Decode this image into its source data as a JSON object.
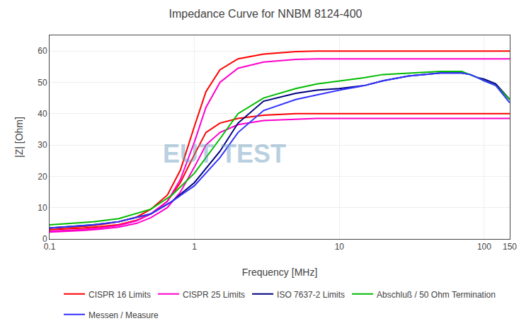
{
  "chart_data": {
    "type": "line",
    "title": "Impedance Curve for NNBM 8124-400",
    "xlabel": "Frequency [MHz]",
    "ylabel": "|Z| [Ohm]",
    "log": "x",
    "xlim": [
      0.1,
      150
    ],
    "xticks": [
      0.1,
      1,
      10,
      100,
      150
    ],
    "ylim": [
      0,
      65
    ],
    "yticks": [
      0,
      10,
      20,
      30,
      40,
      50,
      60
    ],
    "grid": true,
    "legend": "bottom",
    "annotations": [
      {
        "text": "EUT TEST",
        "color": "#6699bb"
      }
    ],
    "series": [
      {
        "name": "CISPR 16 Limits",
        "color": "#ff0000",
        "x": [
          0.1,
          0.13,
          0.17,
          0.22,
          0.3,
          0.4,
          0.5,
          0.65,
          0.8,
          1.0,
          1.2,
          1.5,
          2.0,
          3.0,
          5.0,
          7.0,
          10.0,
          20.0,
          50.0,
          100.0,
          150.0
        ],
        "values": [
          3.5,
          3.7,
          4.0,
          4.5,
          5.5,
          7.0,
          9.5,
          14.0,
          22.0,
          36.0,
          47.0,
          54.0,
          57.5,
          59.0,
          59.8,
          60.0,
          60.0,
          60.0,
          60.0,
          60.0,
          60.0
        ]
      },
      {
        "color": "#ff0000",
        "x": [
          0.1,
          0.13,
          0.17,
          0.22,
          0.3,
          0.4,
          0.5,
          0.65,
          0.8,
          1.0,
          1.2,
          1.5,
          2.0,
          3.0,
          5.0,
          7.0,
          10.0,
          20.0,
          50.0,
          100.0,
          150.0
        ],
        "values": [
          3.0,
          3.2,
          3.5,
          3.9,
          4.6,
          6.0,
          8.0,
          12.0,
          18.0,
          27.0,
          34.0,
          37.0,
          38.5,
          39.5,
          40.0,
          40.0,
          40.0,
          40.0,
          40.0,
          40.0,
          40.0
        ]
      },
      {
        "name": "CISPR 25 Limits",
        "color": "#ff00cc",
        "x": [
          0.1,
          0.13,
          0.17,
          0.22,
          0.3,
          0.4,
          0.5,
          0.65,
          0.8,
          1.0,
          1.2,
          1.5,
          2.0,
          3.0,
          5.0,
          7.0,
          10.0,
          20.0,
          50.0,
          100.0,
          150.0
        ],
        "values": [
          2.5,
          2.7,
          3.0,
          3.5,
          4.3,
          5.8,
          8.0,
          12.0,
          19.0,
          31.0,
          42.0,
          50.0,
          54.5,
          56.5,
          57.3,
          57.5,
          57.5,
          57.5,
          57.5,
          57.5,
          57.5
        ]
      },
      {
        "color": "#ff00cc",
        "x": [
          0.1,
          0.13,
          0.17,
          0.22,
          0.3,
          0.4,
          0.5,
          0.65,
          0.8,
          1.0,
          1.2,
          1.5,
          2.0,
          3.0,
          5.0,
          7.0,
          10.0,
          20.0,
          50.0,
          100.0,
          150.0
        ],
        "values": [
          2.2,
          2.4,
          2.7,
          3.1,
          3.8,
          5.0,
          6.8,
          10.0,
          15.0,
          23.0,
          30.0,
          34.0,
          36.5,
          37.8,
          38.3,
          38.5,
          38.5,
          38.5,
          38.5,
          38.5,
          38.5
        ]
      },
      {
        "name": "ISO 7637-2 Limits",
        "color": "#00007f",
        "x": [
          0.1,
          0.15,
          0.2,
          0.3,
          0.5,
          0.7,
          1.0,
          1.5,
          2.0,
          3.0,
          5.0,
          7.0,
          10.0,
          15.0,
          20.0,
          30.0,
          50.0,
          70.0,
          80.0,
          90.0,
          100.0,
          120.0,
          150.0
        ],
        "values": [
          3.5,
          4.0,
          4.5,
          5.5,
          8.0,
          12.0,
          18.0,
          28.0,
          37.0,
          44.0,
          46.5,
          47.5,
          48.0,
          49.0,
          50.5,
          52.0,
          53.0,
          53.0,
          52.5,
          51.5,
          51.0,
          49.5,
          44.5
        ]
      },
      {
        "name": "Abschluß / 50 Ohm Termination",
        "color": "#00bb00",
        "x": [
          0.1,
          0.15,
          0.2,
          0.3,
          0.5,
          0.7,
          1.0,
          1.5,
          2.0,
          3.0,
          5.0,
          7.0,
          10.0,
          15.0,
          20.0,
          30.0,
          50.0,
          70.0,
          80.0,
          90.0,
          100.0,
          120.0,
          150.0
        ],
        "values": [
          4.5,
          5.0,
          5.5,
          6.5,
          9.5,
          14.0,
          21.0,
          32.0,
          40.0,
          45.0,
          48.0,
          49.5,
          50.5,
          51.5,
          52.5,
          53.0,
          53.5,
          53.5,
          52.5,
          51.5,
          50.5,
          49.0,
          44.5
        ]
      },
      {
        "name": "Messen / Measure",
        "color": "#3333ff",
        "x": [
          0.1,
          0.15,
          0.2,
          0.3,
          0.5,
          0.7,
          1.0,
          1.5,
          2.0,
          3.0,
          5.0,
          7.0,
          10.0,
          15.0,
          20.0,
          30.0,
          50.0,
          70.0,
          80.0,
          90.0,
          100.0,
          120.0,
          150.0
        ],
        "values": [
          3.5,
          4.0,
          4.5,
          5.5,
          8.0,
          12.0,
          17.0,
          26.0,
          34.0,
          41.0,
          44.5,
          46.0,
          47.5,
          49.0,
          50.5,
          52.0,
          53.0,
          53.0,
          52.5,
          51.5,
          50.5,
          49.0,
          43.5
        ]
      }
    ]
  }
}
